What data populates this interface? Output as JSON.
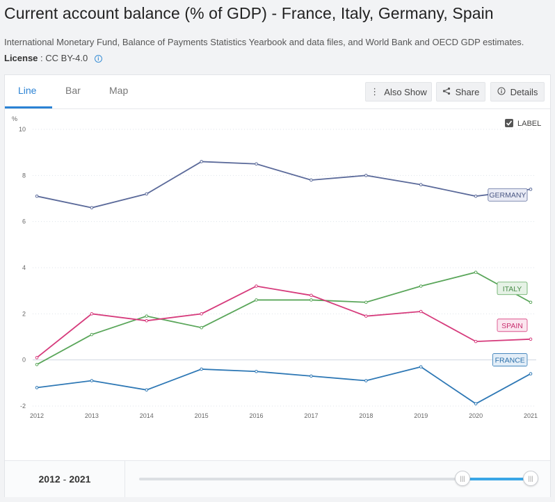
{
  "header": {
    "title": "Current account balance (% of GDP) - France, Italy, Germany, Spain",
    "source": "International Monetary Fund, Balance of Payments Statistics Yearbook and data files, and World Bank and OECD GDP estimates.",
    "license_label": "License",
    "license_value": ": CC BY-4.0",
    "info_icon": "i"
  },
  "tabs": [
    {
      "label": "Line"
    },
    {
      "label": "Bar"
    },
    {
      "label": "Map"
    }
  ],
  "toolbar": {
    "also_show": "Also Show",
    "share": "Share",
    "details": "Details"
  },
  "label_toggle": {
    "text": "LABEL",
    "checked": true
  },
  "range": {
    "start": "2012",
    "end": "2021",
    "separator": "-"
  },
  "chart_data": {
    "type": "line",
    "title": "Current account balance (% of GDP) - France, Italy, Germany, Spain",
    "ylabel": "%",
    "xlabel": "",
    "ylim": [
      -2,
      10
    ],
    "yticks": [
      "-2",
      "0",
      "2",
      "4",
      "6",
      "8",
      "10"
    ],
    "x": [
      "2012",
      "2013",
      "2014",
      "2015",
      "2016",
      "2017",
      "2018",
      "2019",
      "2020",
      "2021"
    ],
    "series": [
      {
        "name": "GERMANY",
        "color": "#5b6a9a",
        "values": [
          7.1,
          6.6,
          7.2,
          8.6,
          8.5,
          7.8,
          8.0,
          7.6,
          7.1,
          7.4
        ]
      },
      {
        "name": "ITALY",
        "color": "#5aa65a",
        "values": [
          -0.2,
          1.1,
          1.9,
          1.4,
          2.6,
          2.6,
          2.5,
          3.2,
          3.8,
          2.5
        ]
      },
      {
        "name": "SPAIN",
        "color": "#d63b7c",
        "values": [
          0.1,
          2.0,
          1.7,
          2.0,
          3.2,
          2.8,
          1.9,
          2.1,
          0.8,
          0.9
        ]
      },
      {
        "name": "FRANCE",
        "color": "#2e78b5",
        "values": [
          -1.2,
          -0.9,
          -1.3,
          -0.4,
          -0.5,
          -0.7,
          -0.9,
          -0.3,
          -1.9,
          -0.6
        ]
      }
    ]
  }
}
